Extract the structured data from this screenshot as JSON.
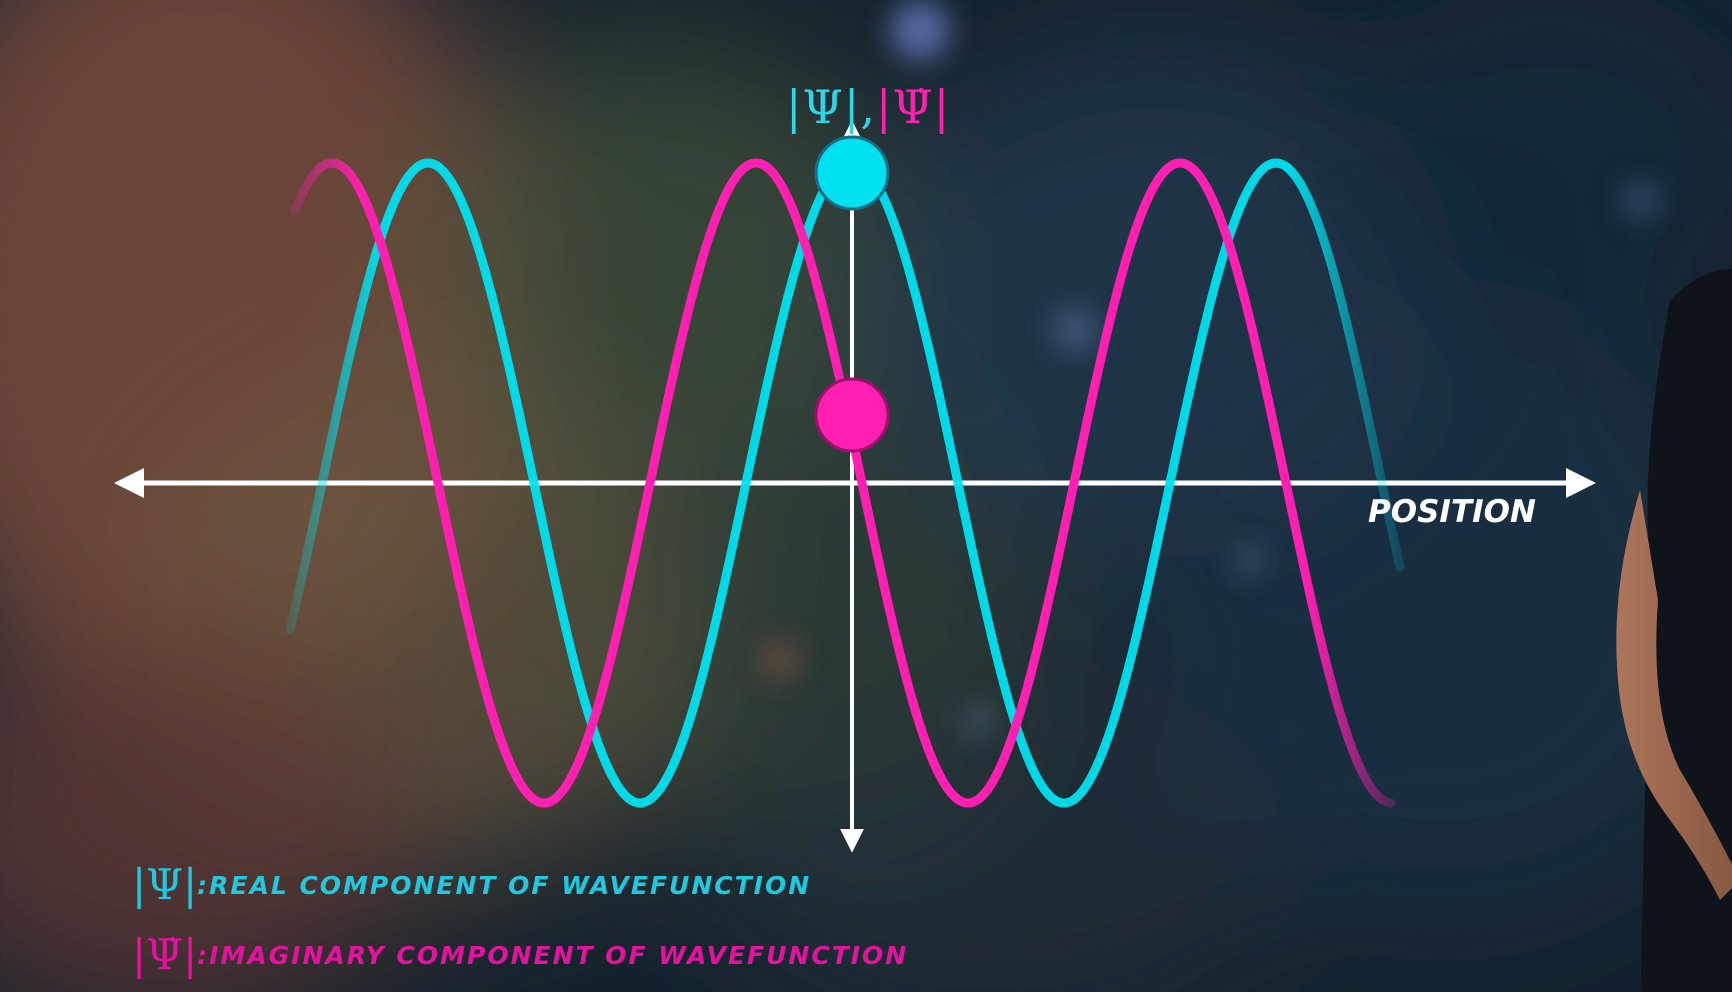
{
  "diagram": {
    "axis_title": {
      "real_symbol": "|Ψ|",
      "separator": ",",
      "imag_symbol": "|Ψ̇|"
    },
    "x_axis_label": "POSITION",
    "legend": [
      {
        "symbol": "|Ψ|",
        "text": ":REAL COMPONENT OF WAVEFUNCTION",
        "color": "#22c8de"
      },
      {
        "symbol": "|Ψ̇|",
        "text": ":IMAGINARY COMPONENT OF WAVEFUNCTION",
        "color": "#e3129f"
      }
    ],
    "curves": [
      {
        "component": "real",
        "color": "#00e1f0",
        "marker": "peak"
      },
      {
        "component": "imaginary",
        "color": "#ff1fb0",
        "marker": "on-curve"
      }
    ]
  }
}
